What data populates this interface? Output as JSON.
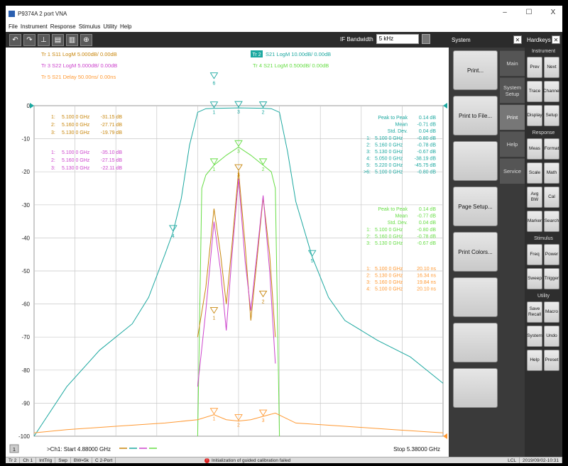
{
  "window": {
    "title": "P9374A 2 port VNA",
    "minimize": "–",
    "maximize": "☐",
    "close": "X"
  },
  "menu": [
    "File",
    "Instrument",
    "Response",
    "Stimulus",
    "Utility",
    "Help"
  ],
  "toolbar": {
    "buttons": [
      "undo-icon",
      "redo-icon",
      "marker-icon",
      "save-icon",
      "trash-icon",
      "zoom-icon"
    ],
    "ifbw_label": "IF Bandwidth",
    "ifbw_value": "5 kHz"
  },
  "colors": {
    "tr1": "#c8860c",
    "tr2": "#1ca8a0",
    "tr3": "#cc44cc",
    "tr4": "#66dd44",
    "tr5": "#ff9933",
    "grid": "#c8c8c8"
  },
  "chart_data": {
    "type": "line",
    "trace_headers": [
      {
        "label": "Tr 1  S11 LogM 5.000dB/  0.00dB",
        "color": "#c8860c"
      },
      {
        "label": "Tr 3  S22 LogM 5.000dB/  0.00dB",
        "color": "#cc44cc"
      },
      {
        "label": "Tr 5  S21 Delay 50.00ns/  0.00ns",
        "color": "#ff9933"
      },
      {
        "badge": "Tr 2",
        "label": "S21 LogM 10.00dB/  0.00dB",
        "color": "#1ca8a0"
      },
      {
        "label": "Tr 4  S21 LogM 0.500dB/  0.00dB",
        "color": "#66dd44"
      }
    ],
    "y_ticks": [
      "0",
      "-10",
      "-20",
      "-30",
      "-40",
      "-50",
      "-60",
      "-70",
      "-80",
      "-90",
      "-100"
    ],
    "ylim": [
      -100,
      0
    ],
    "xlim_ghz": [
      4.88,
      5.38
    ],
    "x_start": "Start  4.88000 GHz",
    "x_stop": "Stop 5.38000 GHz",
    "channel_label": ">Ch1:",
    "channel_button": "1",
    "marker_table_left": [
      {
        "n": "1:",
        "freq": "5.100 0 GHz",
        "val": "-31.15 dB",
        "color": "#c8860c"
      },
      {
        "n": "2:",
        "freq": "5.160 0 GHz",
        "val": "-27.71 dB",
        "color": "#c8860c"
      },
      {
        "n": "3:",
        "freq": "5.130 0 GHz",
        "val": "-19.79 dB",
        "color": "#c8860c"
      },
      {
        "n": "1:",
        "freq": "5.100 0 GHz",
        "val": "-35.10 dB",
        "color": "#cc44cc"
      },
      {
        "n": "2:",
        "freq": "5.160 0 GHz",
        "val": "-27.15 dB",
        "color": "#cc44cc"
      },
      {
        "n": "3:",
        "freq": "5.130 0 GHz",
        "val": "-22.11 dB",
        "color": "#cc44cc"
      }
    ],
    "stats_tr2": [
      {
        "label": "Peak to Peak",
        "val": "0.14 dB"
      },
      {
        "label": "Mean",
        "val": "-0.71 dB"
      },
      {
        "label": "Std. Dev.",
        "val": "0.04 dB"
      }
    ],
    "markers_tr2": [
      {
        "n": "1:",
        "freq": "5.100 0 GHz",
        "val": "-0.80 dB"
      },
      {
        "n": "2:",
        "freq": "5.160 0 GHz",
        "val": "-0.78 dB"
      },
      {
        "n": "3:",
        "freq": "5.130 0 GHz",
        "val": "-0.67 dB"
      },
      {
        "n": "4:",
        "freq": "5.050 0 GHz",
        "val": "-38.19 dB"
      },
      {
        "n": "5:",
        "freq": "5.220 0 GHz",
        "val": "-45.75 dB"
      },
      {
        "n": ">6:",
        "freq": "5.100 0 GHz",
        "val": "-0.80 dB"
      }
    ],
    "stats_tr4": [
      {
        "label": "Peak to Peak",
        "val": "0.14 dB"
      },
      {
        "label": "Mean",
        "val": "-0.77 dB"
      },
      {
        "label": "Std. Dev.",
        "val": "0.04 dB"
      }
    ],
    "markers_tr4": [
      {
        "n": "1:",
        "freq": "5.100 0 GHz",
        "val": "-0.80 dB"
      },
      {
        "n": "2:",
        "freq": "5.160 0 GHz",
        "val": "-0.78 dB"
      },
      {
        "n": "3:",
        "freq": "5.130 0 GHz",
        "val": "-0.67 dB"
      }
    ],
    "markers_tr5": [
      {
        "n": "1:",
        "freq": "5.100 0 GHz",
        "val": "20.10 ns"
      },
      {
        "n": "2:",
        "freq": "5.130 0 GHz",
        "val": "16.34 ns"
      },
      {
        "n": "3:",
        "freq": "5.160 0 GHz",
        "val": "19.84 ns"
      },
      {
        "n": "4:",
        "freq": "5.100 0 GHz",
        "val": "20.10 ns"
      }
    ],
    "series": [
      {
        "name": "Tr 2 S21 LogM",
        "color": "#1ca8a0",
        "points": [
          [
            4.88,
            -100
          ],
          [
            4.92,
            -85
          ],
          [
            4.96,
            -74
          ],
          [
            5.0,
            -66
          ],
          [
            5.02,
            -58
          ],
          [
            5.04,
            -45
          ],
          [
            5.05,
            -38.19
          ],
          [
            5.06,
            -28
          ],
          [
            5.07,
            -12
          ],
          [
            5.08,
            -2
          ],
          [
            5.09,
            -0.9
          ],
          [
            5.1,
            -0.8
          ],
          [
            5.13,
            -0.67
          ],
          [
            5.16,
            -0.78
          ],
          [
            5.17,
            -0.9
          ],
          [
            5.18,
            -2
          ],
          [
            5.19,
            -14
          ],
          [
            5.2,
            -29
          ],
          [
            5.22,
            -45.75
          ],
          [
            5.24,
            -58
          ],
          [
            5.26,
            -65
          ],
          [
            5.3,
            -71
          ],
          [
            5.34,
            -76
          ],
          [
            5.38,
            -84
          ]
        ]
      },
      {
        "name": "Tr 4 S21 LogM",
        "color": "#66dd44",
        "points": [
          [
            5.08,
            -100
          ],
          [
            5.085,
            -25
          ],
          [
            5.09,
            -21
          ],
          [
            5.1,
            -18
          ],
          [
            5.115,
            -15
          ],
          [
            5.13,
            -12.5
          ],
          [
            5.145,
            -15
          ],
          [
            5.16,
            -18
          ],
          [
            5.17,
            -20
          ],
          [
            5.175,
            -25
          ],
          [
            5.18,
            -100
          ]
        ]
      },
      {
        "name": "Tr 1 S11 LogM",
        "color": "#c8860c",
        "points": [
          [
            5.08,
            -70
          ],
          [
            5.09,
            -55
          ],
          [
            5.1,
            -31.15
          ],
          [
            5.108,
            -45
          ],
          [
            5.115,
            -60
          ],
          [
            5.122,
            -42
          ],
          [
            5.13,
            -19.79
          ],
          [
            5.138,
            -42
          ],
          [
            5.145,
            -65
          ],
          [
            5.152,
            -48
          ],
          [
            5.16,
            -27.71
          ],
          [
            5.168,
            -45
          ],
          [
            5.175,
            -70
          ]
        ]
      },
      {
        "name": "Tr 3 S22 LogM",
        "color": "#cc44cc",
        "points": [
          [
            5.08,
            -85
          ],
          [
            5.09,
            -62
          ],
          [
            5.1,
            -35.1
          ],
          [
            5.108,
            -50
          ],
          [
            5.115,
            -68
          ],
          [
            5.122,
            -45
          ],
          [
            5.13,
            -22.11
          ],
          [
            5.138,
            -47
          ],
          [
            5.145,
            -62
          ],
          [
            5.152,
            -46
          ],
          [
            5.16,
            -27.15
          ],
          [
            5.168,
            -50
          ],
          [
            5.175,
            -78
          ]
        ]
      },
      {
        "name": "Tr 5 S21 Delay",
        "color": "#ff9933",
        "points": [
          [
            4.88,
            -99
          ],
          [
            4.92,
            -98
          ],
          [
            4.98,
            -97
          ],
          [
            5.04,
            -96
          ],
          [
            5.08,
            -95
          ],
          [
            5.1,
            -93.5
          ],
          [
            5.115,
            -95
          ],
          [
            5.13,
            -95.4
          ],
          [
            5.145,
            -95
          ],
          [
            5.16,
            -94
          ],
          [
            5.175,
            -93
          ],
          [
            5.2,
            -96
          ],
          [
            5.26,
            -97
          ],
          [
            5.32,
            -98
          ],
          [
            5.38,
            -99
          ]
        ]
      }
    ]
  },
  "system_panel": {
    "title": "System",
    "buttons": [
      "Print...",
      "Print to File...",
      "",
      "Page Setup...",
      "Print Colors...",
      "",
      "",
      ""
    ],
    "tabs": [
      "Main",
      "System Setup",
      "Print",
      "Help",
      "Service"
    ],
    "active_tab": "Print"
  },
  "hardkeys": {
    "title": "Hardkeys",
    "sections": {
      "instrument": "Instrument",
      "response": "Response",
      "stimulus": "Stimulus",
      "utility": "Utility"
    },
    "instrument_keys": [
      "Prev",
      "Next",
      "Trace",
      "Channel",
      "Display",
      "Setup"
    ],
    "response_keys": [
      "Meas",
      "Format",
      "Scale",
      "Math",
      "Avg BW",
      "Cal",
      "Marker",
      "Search"
    ],
    "stimulus_keys": [
      "Freq",
      "Power",
      "Sweep",
      "Trigger"
    ],
    "utility_keys": [
      "Save Recall",
      "Macro",
      "System",
      "Undo",
      "Help",
      "Preset"
    ]
  },
  "status": {
    "cells": [
      "Tr 2",
      "Ch 1",
      "IntTrig",
      "Swp",
      "BW=5k",
      "C 2-Port"
    ],
    "message": "Initialization of guided calibration failed",
    "right": [
      "LCL",
      "2019/09/02-10:31"
    ]
  }
}
